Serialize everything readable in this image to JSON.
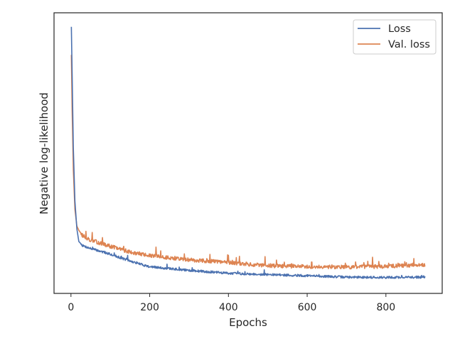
{
  "chart_data": {
    "type": "line",
    "title": "",
    "xlabel": "Epochs",
    "ylabel": "Negative log-likelihood",
    "xlim": [
      -43,
      943
    ],
    "ylim": [
      0,
      1
    ],
    "xticks": [
      0,
      200,
      400,
      600,
      800
    ],
    "yticks_visible": false,
    "grid": false,
    "legend_position": "top-right",
    "series": [
      {
        "name": "Loss",
        "color": "#4c72b0",
        "x": [
          1,
          3,
          6,
          10,
          15,
          20,
          30,
          50,
          100,
          150,
          200,
          300,
          400,
          500,
          600,
          700,
          800,
          900
        ],
        "y": [
          0.95,
          0.78,
          0.52,
          0.33,
          0.23,
          0.185,
          0.17,
          0.16,
          0.14,
          0.115,
          0.095,
          0.082,
          0.072,
          0.067,
          0.063,
          0.058,
          0.057,
          0.058
        ]
      },
      {
        "name": "Val. loss",
        "color": "#dd8452",
        "x": [
          1,
          3,
          6,
          10,
          15,
          20,
          30,
          50,
          100,
          150,
          200,
          300,
          400,
          500,
          600,
          700,
          800,
          900
        ],
        "y": [
          0.85,
          0.65,
          0.44,
          0.3,
          0.24,
          0.225,
          0.205,
          0.19,
          0.168,
          0.148,
          0.134,
          0.12,
          0.11,
          0.098,
          0.096,
          0.094,
          0.096,
          0.103
        ]
      }
    ]
  }
}
